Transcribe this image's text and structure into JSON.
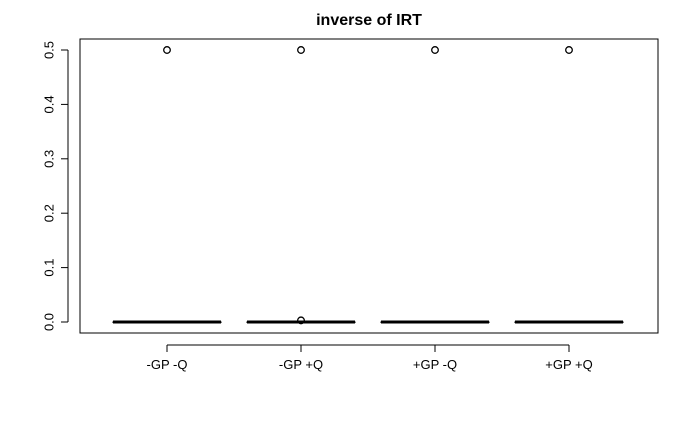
{
  "chart_data": {
    "type": "boxplot",
    "title": "inverse of IRT",
    "xlabel": "",
    "ylabel": "",
    "categories": [
      "-GP -Q",
      "-GP +Q",
      "+GP -Q",
      "+GP +Q"
    ],
    "ylim": [
      0.0,
      0.5
    ],
    "yticks": [
      "0.0",
      "0.1",
      "0.2",
      "0.3",
      "0.4",
      "0.5"
    ],
    "grid": false,
    "legend": "none",
    "series": [
      {
        "category": "-GP -Q",
        "min": 0.0,
        "q1": 0.0,
        "median": 0.0,
        "q3": 0.0,
        "max": 0.0,
        "outliers": [
          0.5
        ]
      },
      {
        "category": "-GP +Q",
        "min": 0.0,
        "q1": 0.0,
        "median": 0.0,
        "q3": 0.0,
        "max": 0.0,
        "outliers": [
          0.5,
          0.003
        ]
      },
      {
        "category": "+GP -Q",
        "min": 0.0,
        "q1": 0.0,
        "median": 0.0,
        "q3": 0.0,
        "max": 0.001,
        "outliers": [
          0.5
        ]
      },
      {
        "category": "+GP +Q",
        "min": 0.0,
        "q1": 0.0,
        "median": 0.0,
        "q3": 0.0,
        "max": 0.001,
        "outliers": [
          0.5
        ]
      }
    ],
    "colors": {
      "stroke": "#000000",
      "background": "#ffffff"
    }
  }
}
